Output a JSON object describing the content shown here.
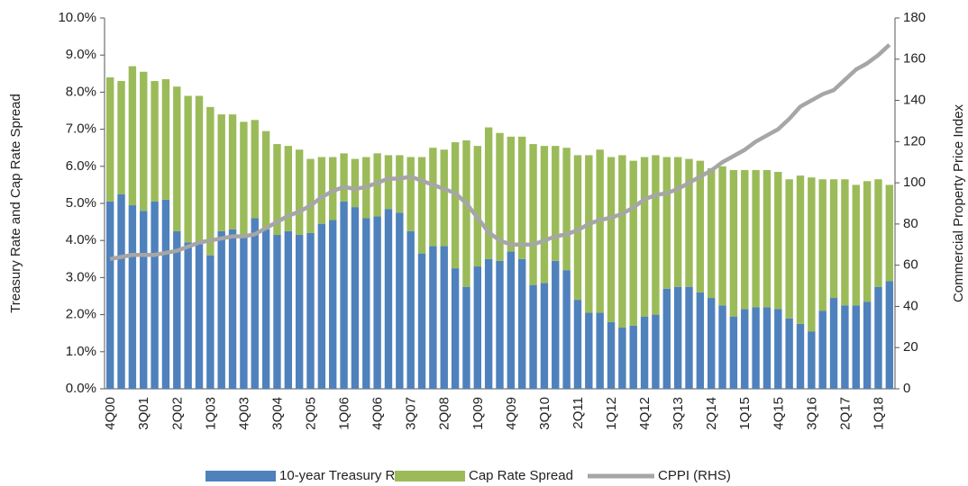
{
  "chart_data": {
    "type": "bar",
    "y_label": "Treasury Rate and Cap Rate Spread",
    "y2_label": "Commercial Property Price Index",
    "categories": [
      "4Q00",
      null,
      null,
      "3Q01",
      null,
      null,
      "2Q02",
      null,
      null,
      "1Q03",
      null,
      null,
      "4Q03",
      null,
      null,
      "3Q04",
      null,
      null,
      "2Q05",
      null,
      null,
      "1Q06",
      null,
      null,
      "4Q06",
      null,
      null,
      "3Q07",
      null,
      null,
      "2Q08",
      null,
      null,
      "1Q09",
      null,
      null,
      "4Q09",
      null,
      null,
      "3Q10",
      null,
      null,
      "2Q11",
      null,
      null,
      "1Q12",
      null,
      null,
      "4Q12",
      null,
      null,
      "3Q13",
      null,
      null,
      "2Q14",
      null,
      null,
      "1Q15",
      null,
      null,
      "4Q15",
      null,
      null,
      "3Q16",
      null,
      null,
      "2Q17",
      null,
      null,
      "1Q18",
      null
    ],
    "series": [
      {
        "name": "10-year Treasury Rate",
        "color": "#4f81bd",
        "stack": "a",
        "values": [
          5.05,
          5.25,
          4.95,
          4.8,
          5.05,
          5.1,
          4.25,
          3.95,
          3.9,
          3.6,
          4.25,
          4.3,
          4.15,
          4.6,
          4.3,
          4.15,
          4.25,
          4.15,
          4.2,
          4.45,
          4.55,
          5.05,
          4.9,
          4.6,
          4.65,
          4.85,
          4.75,
          4.25,
          3.65,
          3.85,
          3.85,
          3.25,
          2.75,
          3.3,
          3.5,
          3.45,
          3.7,
          3.5,
          2.8,
          2.85,
          3.45,
          3.2,
          2.4,
          2.05,
          2.05,
          1.8,
          1.65,
          1.7,
          1.95,
          2.0,
          2.7,
          2.75,
          2.75,
          2.6,
          2.45,
          2.25,
          1.95,
          2.15,
          2.2,
          2.2,
          2.15,
          1.9,
          1.75,
          1.55,
          2.1,
          2.45,
          2.25,
          2.25,
          2.35,
          2.75,
          2.9
        ]
      },
      {
        "name": "Cap Rate Spread",
        "color": "#9bbb59",
        "stack": "a",
        "values": [
          3.35,
          3.05,
          3.75,
          3.75,
          3.25,
          3.25,
          3.9,
          3.95,
          4.0,
          4.0,
          3.15,
          3.1,
          3.05,
          2.65,
          2.65,
          2.45,
          2.3,
          2.3,
          2.0,
          1.8,
          1.7,
          1.3,
          1.3,
          1.65,
          1.7,
          1.45,
          1.55,
          2.0,
          2.6,
          2.65,
          2.6,
          3.4,
          3.95,
          3.25,
          3.55,
          3.45,
          3.1,
          3.3,
          3.8,
          3.7,
          3.1,
          3.3,
          3.9,
          4.25,
          4.4,
          4.45,
          4.65,
          4.45,
          4.3,
          4.3,
          3.55,
          3.5,
          3.45,
          3.55,
          3.5,
          3.75,
          3.95,
          3.75,
          3.7,
          3.7,
          3.7,
          3.75,
          4.0,
          4.15,
          3.55,
          3.2,
          3.4,
          3.25,
          3.25,
          2.9,
          2.6
        ]
      },
      {
        "name": "CPPI (RHS)",
        "color": "#a6a6a6",
        "type": "line",
        "axis": "y2",
        "values": [
          63,
          64,
          65,
          65,
          65,
          66,
          67,
          69,
          71,
          72,
          73,
          74,
          74,
          75,
          78,
          81,
          84,
          86,
          89,
          93,
          96,
          98,
          97,
          98,
          100,
          102,
          102,
          103,
          101,
          99,
          97,
          95,
          90,
          83,
          76,
          72,
          70,
          70,
          70,
          72,
          74,
          75,
          77,
          80,
          82,
          83,
          85,
          88,
          92,
          94,
          95,
          97,
          100,
          103,
          106,
          110,
          113,
          116,
          120,
          123,
          126,
          131,
          137,
          140,
          143,
          145,
          150,
          155,
          158,
          162,
          167
        ]
      }
    ],
    "ylim": [
      0,
      10
    ],
    "yticks": [
      {
        "value": 0,
        "label": "0.0%"
      },
      {
        "value": 1,
        "label": "1.0%"
      },
      {
        "value": 2,
        "label": "2.0%"
      },
      {
        "value": 3,
        "label": "3.0%"
      },
      {
        "value": 4,
        "label": "4.0%"
      },
      {
        "value": 5,
        "label": "5.0%"
      },
      {
        "value": 6,
        "label": "6.0%"
      },
      {
        "value": 7,
        "label": "7.0%"
      },
      {
        "value": 8,
        "label": "8.0%"
      },
      {
        "value": 9,
        "label": "9.0%"
      },
      {
        "value": 10,
        "label": "10.0%"
      }
    ],
    "y2lim": [
      0,
      180
    ],
    "y2ticks": [
      0,
      20,
      40,
      60,
      80,
      100,
      120,
      140,
      160,
      180
    ],
    "grid": false,
    "legend": "bottom"
  }
}
